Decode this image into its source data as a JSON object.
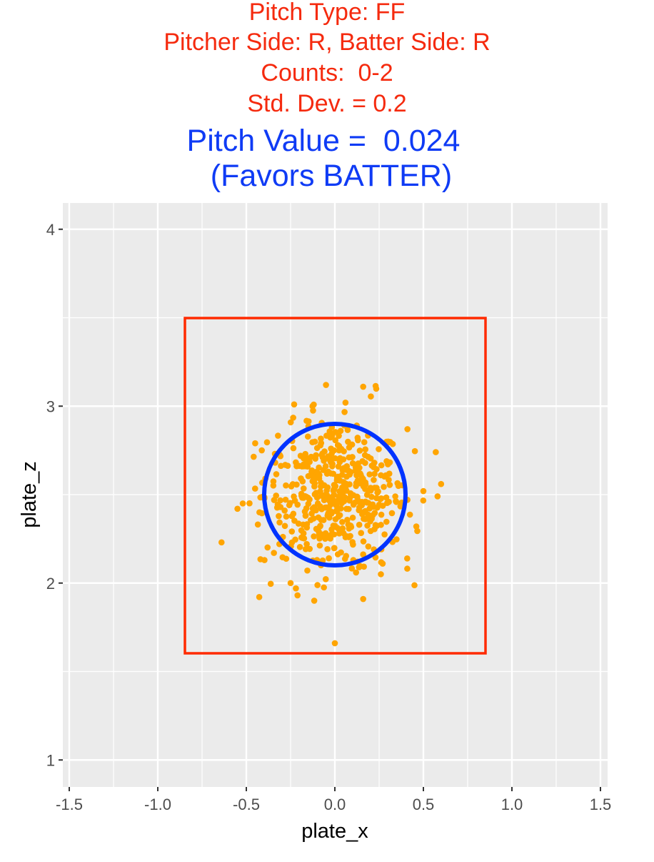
{
  "titles": {
    "line1": "Pitch Type: FF",
    "line2": "Pitcher Side: R, Batter Side: R",
    "line3": "Counts:  0-2",
    "line4": "Std. Dev. = 0.2",
    "value_line": "Pitch Value =  0.024",
    "favor_line": " (Favors BATTER)"
  },
  "colors": {
    "title_red": "#F52A0E",
    "title_blue": "#0F3BF5",
    "panel_bg": "#EBEBEB",
    "grid": "#FFFFFF",
    "strike_zone": "#FF2A00",
    "circle": "#0033FF",
    "points": "#FFA500"
  },
  "chart_data": {
    "type": "scatter",
    "title": "Pitch Type: FF / Pitcher Side: R, Batter Side: R / Counts: 0-2 / Std. Dev. = 0.2 / Pitch Value = 0.024 (Favors BATTER)",
    "xlabel": "plate_x",
    "ylabel": "plate_z",
    "xlim": [
      -1.55,
      1.55
    ],
    "ylim": [
      0.9,
      4.15
    ],
    "x_ticks": [
      "-1.5",
      "-1.0",
      "-0.5",
      "0.0",
      "0.5",
      "1.0",
      "1.5"
    ],
    "y_ticks": [
      "1",
      "2",
      "3",
      "4"
    ],
    "grid": true,
    "strike_zone": {
      "x_min": -0.85,
      "x_max": 0.85,
      "z_min": 1.6,
      "z_max": 3.5
    },
    "target_circle": {
      "center_x": 0.0,
      "center_z": 2.5,
      "radius": 0.4
    },
    "point_distribution": {
      "mean_x": 0.0,
      "mean_z": 2.5,
      "sd": 0.2,
      "n_approx": 500
    },
    "outlier_points": [
      [
        -0.64,
        2.23
      ],
      [
        0.0,
        1.66
      ],
      [
        -0.22,
        1.97
      ],
      [
        0.16,
        1.91
      ],
      [
        -0.05,
        3.12
      ],
      [
        0.16,
        3.11
      ],
      [
        0.6,
        2.56
      ],
      [
        0.58,
        2.49
      ],
      [
        0.57,
        2.74
      ],
      [
        -0.55,
        2.42
      ],
      [
        -0.52,
        2.45
      ],
      [
        -0.45,
        2.79
      ],
      [
        0.41,
        2.87
      ],
      [
        -0.23,
        3.01
      ],
      [
        0.06,
        3.02
      ],
      [
        -0.25,
        2.0
      ],
      [
        0.26,
        2.05
      ],
      [
        0.27,
        2.11
      ],
      [
        0.5,
        2.52
      ],
      [
        0.46,
        2.32
      ]
    ]
  }
}
